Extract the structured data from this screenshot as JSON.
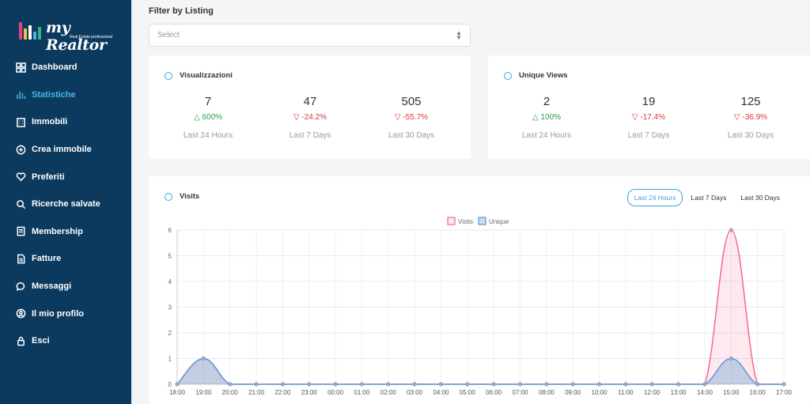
{
  "brand": {
    "name": "my Realtor",
    "tagline": "Real Estate professional"
  },
  "sidebar": {
    "items": [
      {
        "label": "Dashboard",
        "icon": "dashboard-icon",
        "active": false
      },
      {
        "label": "Statistiche",
        "icon": "chart-icon",
        "active": true
      },
      {
        "label": "Immobili",
        "icon": "building-icon",
        "active": false
      },
      {
        "label": "Crea immobile",
        "icon": "plus-circle-icon",
        "active": false
      },
      {
        "label": "Preferiti",
        "icon": "heart-icon",
        "active": false
      },
      {
        "label": "Ricerche salvate",
        "icon": "search-icon",
        "active": false
      },
      {
        "label": "Membership",
        "icon": "membership-icon",
        "active": false
      },
      {
        "label": "Fatture",
        "icon": "invoice-icon",
        "active": false
      },
      {
        "label": "Messaggi",
        "icon": "message-icon",
        "active": false
      },
      {
        "label": "Il mio profilo",
        "icon": "user-icon",
        "active": false
      },
      {
        "label": "Esci",
        "icon": "lock-icon",
        "active": false
      }
    ]
  },
  "filter": {
    "label": "Filter by Listing",
    "placeholder": "Select"
  },
  "cards": [
    {
      "title": "Visualizzazioni",
      "stats": [
        {
          "value": "7",
          "delta": "600%",
          "direction": "up",
          "period": "Last 24 Hours"
        },
        {
          "value": "47",
          "delta": "-24.2%",
          "direction": "down",
          "period": "Last 7 Days"
        },
        {
          "value": "505",
          "delta": "-55.7%",
          "direction": "down",
          "period": "Last 30 Days"
        }
      ]
    },
    {
      "title": "Unique Views",
      "stats": [
        {
          "value": "2",
          "delta": "100%",
          "direction": "up",
          "period": "Last 24 Hours"
        },
        {
          "value": "19",
          "delta": "-17.4%",
          "direction": "down",
          "period": "Last 7 Days"
        },
        {
          "value": "125",
          "delta": "-36.9%",
          "direction": "down",
          "period": "Last 30 Days"
        }
      ]
    }
  ],
  "visits": {
    "title": "Visits",
    "tabs": [
      {
        "label": "Last 24 Hours",
        "active": true
      },
      {
        "label": "Last 7 Days",
        "active": false
      },
      {
        "label": "Last 30 Days",
        "active": false
      }
    ]
  },
  "colors": {
    "sidebar": "#0b3a5e",
    "accent": "#3aa4dc",
    "visits": "#f06b8e",
    "unique": "#5b9bd5",
    "up": "#2d9d4b",
    "down": "#d9363e"
  },
  "chart_data": {
    "type": "area",
    "x": [
      "18:00",
      "19:00",
      "20:00",
      "21:00",
      "22:00",
      "23:00",
      "00:00",
      "01:00",
      "02:00",
      "03:00",
      "04:00",
      "05:00",
      "06:00",
      "07:00",
      "08:00",
      "09:00",
      "10:00",
      "11:00",
      "12:00",
      "13:00",
      "14:00",
      "15:00",
      "16:00",
      "17:00"
    ],
    "series": [
      {
        "name": "Visits",
        "values": [
          0,
          1,
          0,
          0,
          0,
          0,
          0,
          0,
          0,
          0,
          0,
          0,
          0,
          0,
          0,
          0,
          0,
          0,
          0,
          0,
          0,
          6,
          0,
          0
        ]
      },
      {
        "name": "Unique",
        "values": [
          0,
          1,
          0,
          0,
          0,
          0,
          0,
          0,
          0,
          0,
          0,
          0,
          0,
          0,
          0,
          0,
          0,
          0,
          0,
          0,
          0,
          1,
          0,
          0
        ]
      }
    ],
    "yticks": [
      0,
      1,
      2,
      3,
      4,
      5,
      6
    ],
    "ylim": [
      0,
      6
    ],
    "grid": true,
    "legend": "top-center"
  }
}
